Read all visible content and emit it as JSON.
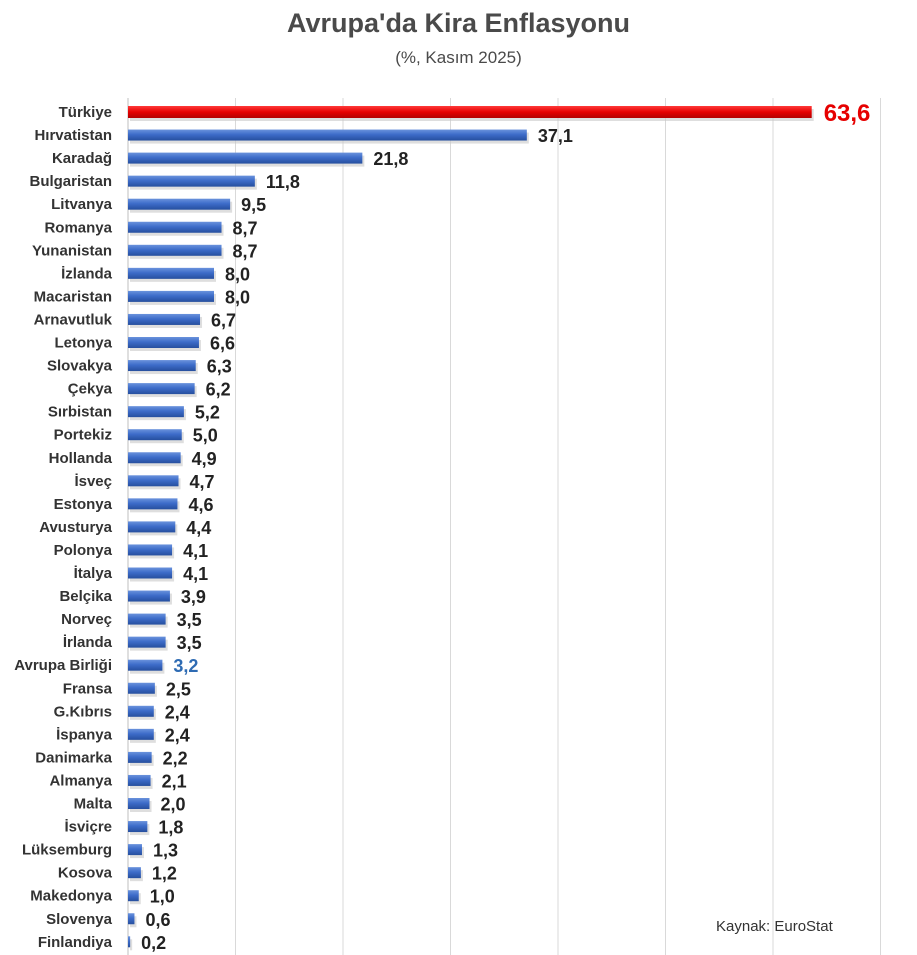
{
  "chart_data": {
    "type": "bar",
    "orientation": "horizontal",
    "title": "Avrupa'da Kira Enflasyonu",
    "subtitle": "(%, Kasım 2025)",
    "source": "Kaynak: EuroStat",
    "xlabel": "",
    "ylabel": "",
    "xlim": [
      0,
      70
    ],
    "grid": true,
    "categories": [
      "Türkiye",
      "Hırvatistan",
      "Karadağ",
      "Bulgaristan",
      "Litvanya",
      "Romanya",
      "Yunanistan",
      "İzlanda",
      "Macaristan",
      "Arnavutluk",
      "Letonya",
      "Slovakya",
      "Çekya",
      "Sırbistan",
      "Portekiz",
      "Hollanda",
      "İsveç",
      "Estonya",
      "Avusturya",
      "Polonya",
      "İtalya",
      "Belçika",
      "Norveç",
      "İrlanda",
      "Avrupa Birliği",
      "Fransa",
      "G.Kıbrıs",
      "İspanya",
      "Danimarka",
      "Almanya",
      "Malta",
      "İsviçre",
      "Lüksemburg",
      "Kosova",
      "Makedonya",
      "Slovenya",
      "Finlandiya"
    ],
    "values": [
      63.6,
      37.1,
      21.8,
      11.8,
      9.5,
      8.7,
      8.7,
      8.0,
      8.0,
      6.7,
      6.6,
      6.3,
      6.2,
      5.2,
      5.0,
      4.9,
      4.7,
      4.6,
      4.4,
      4.1,
      4.1,
      3.9,
      3.5,
      3.5,
      3.2,
      2.5,
      2.4,
      2.4,
      2.2,
      2.1,
      2.0,
      1.8,
      1.3,
      1.2,
      1.0,
      0.6,
      0.2
    ],
    "value_labels": [
      "63,6",
      "37,1",
      "21,8",
      "11,8",
      "9,5",
      "8,7",
      "8,7",
      "8,0",
      "8,0",
      "6,7",
      "6,6",
      "6,3",
      "6,2",
      "5,2",
      "5,0",
      "4,9",
      "4,7",
      "4,6",
      "4,4",
      "4,1",
      "4,1",
      "3,9",
      "3,5",
      "3,5",
      "3,2",
      "2,5",
      "2,4",
      "2,4",
      "2,2",
      "2,1",
      "2,0",
      "1,8",
      "1,3",
      "1,2",
      "1,0",
      "0,6",
      "0,2"
    ],
    "highlight": {
      "category": "Türkiye",
      "color": "#e60000"
    },
    "eu_highlight": {
      "category": "Avrupa Birliği",
      "label_color": "#2e6bb3"
    },
    "bar_color": "#3d6cc9"
  }
}
